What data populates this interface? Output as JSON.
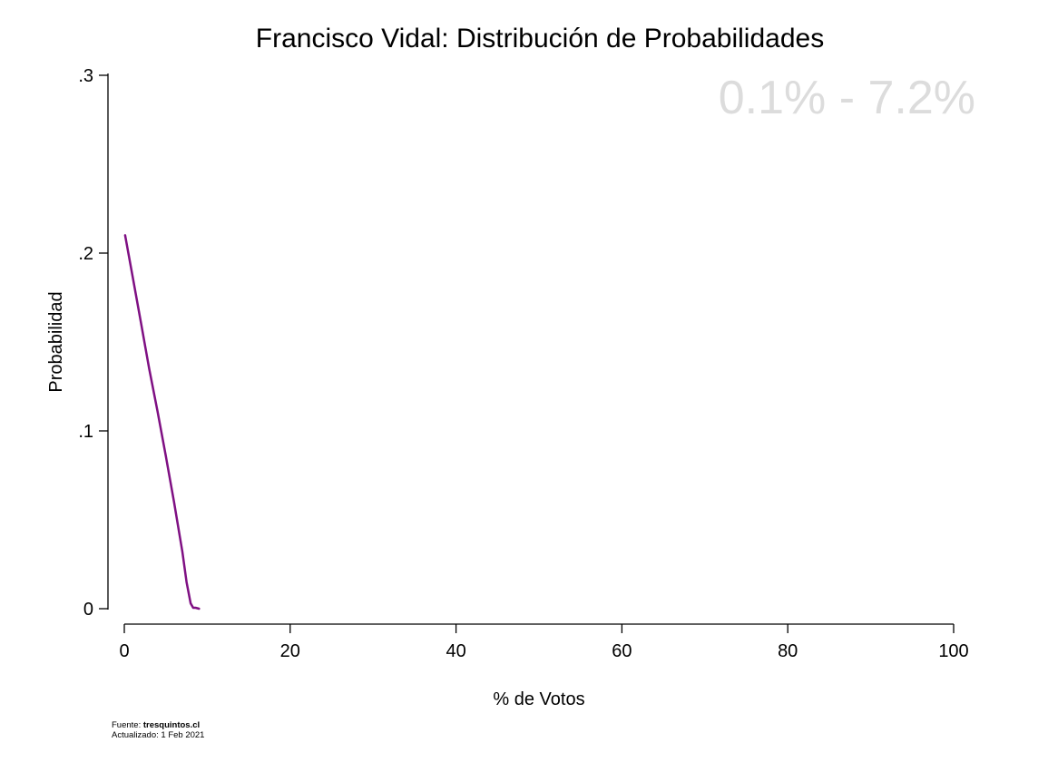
{
  "chart_data": {
    "type": "line",
    "title": "Francisco Vidal: Distribución de Probabilidades",
    "xlabel": "% de Votos",
    "ylabel": "Probabilidad",
    "xlim": [
      0,
      100
    ],
    "ylim": [
      0,
      0.3
    ],
    "x_ticks": [
      0,
      20,
      40,
      60,
      80,
      100
    ],
    "x_tick_labels": [
      "0",
      "20",
      "40",
      "60",
      "80",
      "100"
    ],
    "y_ticks": [
      0,
      0.1,
      0.2,
      0.3
    ],
    "y_tick_labels": [
      "0",
      ".1",
      ".2",
      ".3"
    ],
    "grid": false,
    "series": [
      {
        "color": "#7f1083",
        "x": [
          0.1,
          1,
          2,
          3,
          4,
          5,
          6,
          7,
          7.5,
          8,
          8.3,
          8.6,
          9
        ],
        "y": [
          0.21,
          0.187,
          0.161,
          0.135,
          0.111,
          0.086,
          0.06,
          0.032,
          0.015,
          0.003,
          0.0005,
          0.0005,
          0
        ]
      }
    ],
    "range_label": "0.1% - 7.2%",
    "range_label_color": "#dcdcdc"
  },
  "footer": {
    "source_prefix": "Fuente: ",
    "source_name": "tresquintos.cl",
    "updated": "Actualizado: 1 Feb 2021"
  }
}
